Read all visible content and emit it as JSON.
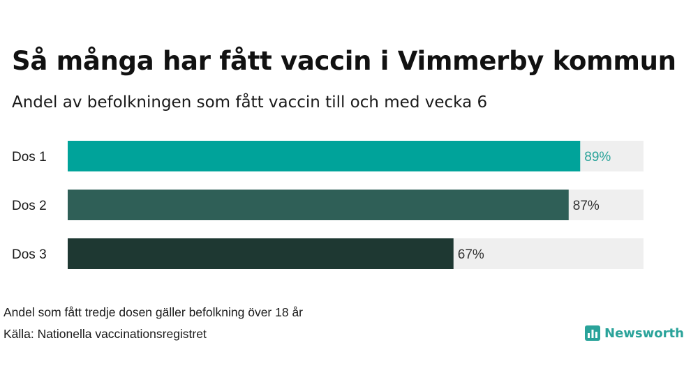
{
  "header": {
    "title": "Så många har fått vaccin i Vimmerby kommun",
    "subtitle": "Andel av befolkningen som fått vaccin till och med vecka 6"
  },
  "chart_data": {
    "type": "bar",
    "orientation": "horizontal",
    "title": "Så många har fått vaccin i Vimmerby kommun",
    "subtitle": "Andel av befolkningen som fått vaccin till och med vecka 6",
    "categories": [
      "Dos 1",
      "Dos 2",
      "Dos 3"
    ],
    "values": [
      89,
      87,
      67
    ],
    "value_labels": [
      "89%",
      "87%",
      "67%"
    ],
    "colors": [
      "#00a39a",
      "#2f5f57",
      "#1e3832"
    ],
    "label_colors": [
      "#2aa39a",
      "#333333",
      "#333333"
    ],
    "track_color": "#efefef",
    "xlim": [
      0,
      100
    ],
    "unit": "%",
    "grid": false,
    "legend": "none"
  },
  "footer": {
    "note": "Andel som fått tredje dosen gäller befolkning över 18 år",
    "source": "Källa: Nationella vaccinationsregistret",
    "logo_text": "Newsworthy",
    "logo_icon": "bar-chart-logo-icon",
    "logo_color": "#2aa39a"
  }
}
